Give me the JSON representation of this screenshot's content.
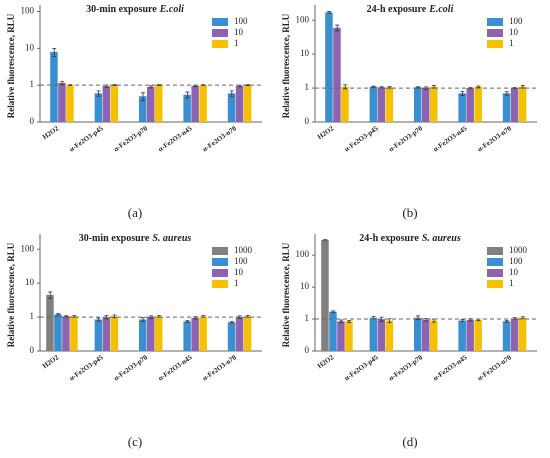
{
  "chart_data": [
    {
      "type": "bar",
      "title": "30-min exposure",
      "title_organism": "E.coli",
      "panel_label": "(a)",
      "y_label": "Relative fluorescence, RLU",
      "log_scale": true,
      "reference_line": 1,
      "categories": [
        "H2O2",
        "α-Fe2O3-p45",
        "α-Fe2O3-p70",
        "α-Fe2O3-n45",
        "α-Fe2O3-n70"
      ],
      "series": [
        {
          "name": "100",
          "color": "#3a8fd0",
          "values": [
            8,
            0.6,
            0.5,
            0.55,
            0.6
          ],
          "errors": [
            2,
            0.1,
            0.12,
            0.1,
            0.1
          ]
        },
        {
          "name": "10",
          "color": "#8e63b0",
          "values": [
            1.15,
            0.95,
            0.9,
            0.95,
            0.95
          ],
          "errors": [
            0.1,
            0.07,
            0.06,
            0.04,
            0.05
          ]
        },
        {
          "name": "1",
          "color": "#f5c000",
          "values": [
            1.0,
            1.0,
            1.0,
            1.0,
            1.0
          ],
          "errors": [
            0.03,
            0.03,
            0.03,
            0.03,
            0.03
          ]
        }
      ],
      "ylim": [
        0.1,
        110
      ],
      "yticks": [
        {
          "value": 0.1,
          "label": "0"
        },
        1,
        10,
        100
      ]
    },
    {
      "type": "bar",
      "title": "24-h exposure",
      "title_organism": "E.coli",
      "panel_label": "(b)",
      "y_label": "Relative fluorescence, RLU",
      "log_scale": true,
      "reference_line": 1,
      "categories": [
        "H2O2",
        "α-Fe2O3-p45",
        "α-Fe2O3-p70",
        "α-Fe2O3-n45",
        "α-Fe2O3-n70"
      ],
      "series": [
        {
          "name": "100",
          "color": "#3a8fd0",
          "values": [
            170,
            1.1,
            1.05,
            0.7,
            0.7
          ],
          "errors": [
            10,
            0.04,
            0.04,
            0.1,
            0.08
          ]
        },
        {
          "name": "10",
          "color": "#8e63b0",
          "values": [
            60,
            1.05,
            1.0,
            1.0,
            1.0
          ],
          "errors": [
            12,
            0.04,
            0.08,
            0.04,
            0.04
          ]
        },
        {
          "name": "1",
          "color": "#f5c000",
          "values": [
            1.1,
            1.05,
            1.1,
            1.1,
            1.1
          ],
          "errors": [
            0.15,
            0.05,
            0.1,
            0.05,
            0.1
          ]
        }
      ],
      "ylim": [
        0.1,
        200
      ],
      "yticks": [
        {
          "value": 0.1,
          "label": "0"
        },
        1,
        10,
        100
      ]
    },
    {
      "type": "bar",
      "title": "30-min exposure",
      "title_organism": "S. aureus",
      "panel_label": "(c)",
      "y_label": "Relative fluorescence, RLU",
      "log_scale": true,
      "reference_line": 1,
      "categories": [
        "H2O2",
        "α-Fe2O3-p45",
        "α-Fe2O3-p70",
        "α-Fe2O3-n45",
        "α-Fe2O3-n70"
      ],
      "series": [
        {
          "name": "1000",
          "color": "#808080",
          "values": [
            4.5,
            null,
            null,
            null,
            null
          ],
          "errors": [
            1,
            null,
            null,
            null,
            null
          ]
        },
        {
          "name": "100",
          "color": "#3a8fd0",
          "values": [
            1.2,
            0.85,
            0.85,
            0.75,
            0.7
          ],
          "errors": [
            0.06,
            0.08,
            0.1,
            0.05,
            0.03
          ]
        },
        {
          "name": "10",
          "color": "#8e63b0",
          "values": [
            1.05,
            1.0,
            1.0,
            0.95,
            1.0
          ],
          "errors": [
            0.04,
            0.12,
            0.08,
            0.08,
            0.08
          ]
        },
        {
          "name": "1",
          "color": "#f5c000",
          "values": [
            1.05,
            1.05,
            1.05,
            1.05,
            1.05
          ],
          "errors": [
            0.06,
            0.1,
            0.06,
            0.06,
            0.06
          ]
        }
      ],
      "ylim": [
        0.1,
        200
      ],
      "yticks": [
        {
          "value": 0.1,
          "label": "0"
        },
        1,
        10,
        100
      ]
    },
    {
      "type": "bar",
      "title": "24-h  exposure",
      "title_organism": "S. aureus",
      "panel_label": "(d)",
      "y_label": "Relative fluorescence, RLU",
      "log_scale": true,
      "reference_line": 1,
      "categories": [
        "H2O2",
        "α-Fe2O3-p45",
        "α-Fe2O3-p70",
        "α-Fe2O3-n45",
        "α-Fe2O3-n70"
      ],
      "series": [
        {
          "name": "1000",
          "color": "#808080",
          "values": [
            300,
            null,
            null,
            null,
            null
          ],
          "errors": [
            5,
            null,
            null,
            null,
            null
          ]
        },
        {
          "name": "100",
          "color": "#3a8fd0",
          "values": [
            1.7,
            1.1,
            1.1,
            0.9,
            0.85
          ],
          "errors": [
            0.1,
            0.1,
            0.15,
            0.06,
            0.06
          ]
        },
        {
          "name": "10",
          "color": "#8e63b0",
          "values": [
            0.85,
            1.0,
            0.95,
            0.95,
            1.05
          ],
          "errors": [
            0.08,
            0.15,
            0.08,
            0.08,
            0.06
          ]
        },
        {
          "name": "1",
          "color": "#f5c000",
          "values": [
            0.85,
            0.9,
            0.9,
            0.95,
            1.1
          ],
          "errors": [
            0.06,
            0.12,
            0.1,
            0.06,
            0.08
          ]
        }
      ],
      "ylim": [
        0.1,
        320
      ],
      "yticks": [
        {
          "value": 0.1,
          "label": "0"
        },
        1,
        10,
        100
      ]
    }
  ]
}
